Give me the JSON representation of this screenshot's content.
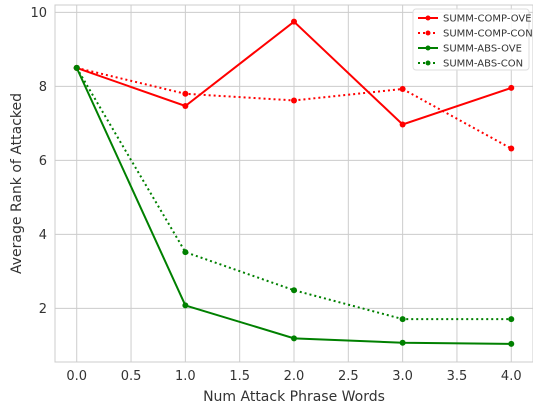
{
  "chart_data": {
    "type": "line",
    "title": "",
    "xlabel": "Num Attack Phrase Words",
    "ylabel": "Average Rank of Attacked",
    "xlim": [
      -0.2,
      4.2
    ],
    "ylim": [
      0.55,
      10.2
    ],
    "x_ticks": [
      "0.0",
      "0.5",
      "1.0",
      "1.5",
      "2.0",
      "2.5",
      "3.0",
      "3.5",
      "4.0"
    ],
    "y_ticks": [
      "2",
      "4",
      "6",
      "8",
      "10"
    ],
    "grid": true,
    "legend_position": "top-right",
    "x": [
      0.0,
      1.0,
      2.0,
      3.0,
      4.0
    ],
    "series": [
      {
        "name": "SUMM-COMP-OVE",
        "color": "#ff0000",
        "style": "solid",
        "values": [
          8.5,
          7.47,
          9.75,
          6.97,
          7.96
        ]
      },
      {
        "name": "SUMM-COMP-CON",
        "color": "#ff0000",
        "style": "dotted",
        "values": [
          8.5,
          7.8,
          7.62,
          7.93,
          6.32
        ]
      },
      {
        "name": "SUMM-ABS-OVE",
        "color": "#008000",
        "style": "solid",
        "values": [
          8.5,
          2.08,
          1.19,
          1.07,
          1.04
        ]
      },
      {
        "name": "SUMM-ABS-CON",
        "color": "#008000",
        "style": "dotted",
        "values": [
          8.5,
          3.52,
          2.49,
          1.71,
          1.71
        ]
      }
    ]
  }
}
